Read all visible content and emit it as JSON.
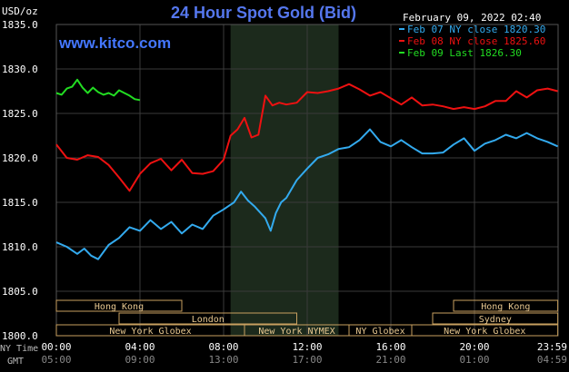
{
  "header": {
    "unit": "USD/oz",
    "title": "24 Hour Spot Gold (Bid)",
    "website": "www.kitco.com",
    "timestamp": "February 09, 2022 02:40"
  },
  "legend": [
    {
      "label": "Feb 07 NY close 1820.30",
      "color": "#33aaee"
    },
    {
      "label": "Feb 08 NY close 1825.60",
      "color": "#ee1111"
    },
    {
      "label": "Feb 09 Last 1826.30",
      "color": "#22dd22"
    }
  ],
  "markets": [
    {
      "name": "Hong Kong",
      "row": 0,
      "start": "00:00",
      "end": "06:00"
    },
    {
      "name": "Hong Kong",
      "row": 0,
      "start": "19:00",
      "end": "23:59"
    },
    {
      "name": "London",
      "row": 1,
      "start": "03:00",
      "end": "11:30"
    },
    {
      "name": "Sydney",
      "row": 1,
      "start": "18:00",
      "end": "23:59"
    },
    {
      "name": "New York Globex",
      "row": 2,
      "start": "00:00",
      "end": "09:00"
    },
    {
      "name": "New York NYMEX",
      "row": 2,
      "start": "09:00",
      "end": "14:00"
    },
    {
      "name": "NY Globex",
      "row": 2,
      "start": "14:00",
      "end": "17:00"
    },
    {
      "name": "New York Globex",
      "row": 2,
      "start": "17:00",
      "end": "23:59"
    }
  ],
  "axis_labels": {
    "ny_time": "NY Time",
    "gmt": "GMT"
  },
  "chart_data": {
    "type": "line",
    "title": "24 Hour Spot Gold (Bid)",
    "ylabel": "USD/oz",
    "ylim": [
      1800,
      1835
    ],
    "y_ticks": [
      "1800.0",
      "1805.0",
      "1810.0",
      "1815.0",
      "1820.0",
      "1825.0",
      "1830.0",
      "1835.0"
    ],
    "x_range_hours": [
      0,
      24
    ],
    "x_ticks_ny": [
      "00:00",
      "04:00",
      "08:00",
      "12:00",
      "16:00",
      "20:00",
      "23:59"
    ],
    "x_ticks_gmt": [
      "05:00",
      "09:00",
      "13:00",
      "17:00",
      "21:00",
      "01:00",
      "04:59"
    ],
    "highlight_band": {
      "start": "08:20",
      "end": "13:30"
    },
    "grid": true,
    "legend_position": "top-right",
    "series": [
      {
        "name": "Feb 07 NY close 1820.30",
        "color": "#33aaee",
        "x": [
          "00:00",
          "00:30",
          "01:00",
          "01:20",
          "01:40",
          "02:00",
          "02:30",
          "03:00",
          "03:30",
          "04:00",
          "04:30",
          "05:00",
          "05:30",
          "06:00",
          "06:30",
          "07:00",
          "07:30",
          "08:00",
          "08:30",
          "08:50",
          "09:10",
          "09:30",
          "10:00",
          "10:15",
          "10:30",
          "10:45",
          "11:00",
          "11:30",
          "12:00",
          "12:30",
          "13:00",
          "13:30",
          "14:00",
          "14:30",
          "15:00",
          "15:30",
          "16:00",
          "16:30",
          "17:00",
          "17:30",
          "18:00",
          "18:30",
          "19:00",
          "19:30",
          "20:00",
          "20:30",
          "21:00",
          "21:30",
          "22:00",
          "22:30",
          "23:00",
          "23:30",
          "23:59"
        ],
        "values": [
          1810.5,
          1810.0,
          1809.2,
          1809.8,
          1809.0,
          1808.6,
          1810.2,
          1811.0,
          1812.2,
          1811.8,
          1813.0,
          1812.0,
          1812.8,
          1811.5,
          1812.5,
          1812.0,
          1813.5,
          1814.2,
          1815.0,
          1816.2,
          1815.2,
          1814.5,
          1813.2,
          1811.8,
          1813.8,
          1815.0,
          1815.5,
          1817.5,
          1818.8,
          1820.0,
          1820.4,
          1821.0,
          1821.2,
          1822.0,
          1823.2,
          1821.8,
          1821.3,
          1822.0,
          1821.2,
          1820.5,
          1820.5,
          1820.6,
          1821.5,
          1822.2,
          1820.8,
          1821.6,
          1822.0,
          1822.6,
          1822.2,
          1822.8,
          1822.2,
          1821.8,
          1821.3
        ]
      },
      {
        "name": "Feb 08 NY close 1825.60",
        "color": "#ee1111",
        "x": [
          "00:00",
          "00:30",
          "01:00",
          "01:30",
          "02:00",
          "02:30",
          "03:00",
          "03:30",
          "04:00",
          "04:30",
          "05:00",
          "05:30",
          "06:00",
          "06:30",
          "07:00",
          "07:30",
          "08:00",
          "08:20",
          "08:40",
          "09:00",
          "09:20",
          "09:40",
          "10:00",
          "10:20",
          "10:40",
          "11:00",
          "11:30",
          "12:00",
          "12:30",
          "13:00",
          "13:30",
          "14:00",
          "14:30",
          "15:00",
          "15:30",
          "16:00",
          "16:30",
          "17:00",
          "17:30",
          "18:00",
          "18:30",
          "19:00",
          "19:30",
          "20:00",
          "20:30",
          "21:00",
          "21:30",
          "22:00",
          "22:30",
          "23:00",
          "23:30",
          "23:59"
        ],
        "values": [
          1821.5,
          1820.0,
          1819.8,
          1820.3,
          1820.1,
          1819.2,
          1817.8,
          1816.3,
          1818.2,
          1819.4,
          1819.9,
          1818.6,
          1819.8,
          1818.3,
          1818.2,
          1818.5,
          1819.8,
          1822.5,
          1823.2,
          1824.5,
          1822.3,
          1822.6,
          1827.0,
          1825.9,
          1826.2,
          1826.0,
          1826.2,
          1827.4,
          1827.3,
          1827.5,
          1827.8,
          1828.3,
          1827.7,
          1827.0,
          1827.4,
          1826.7,
          1826.0,
          1826.8,
          1825.9,
          1826.0,
          1825.8,
          1825.5,
          1825.7,
          1825.5,
          1825.8,
          1826.4,
          1826.4,
          1827.5,
          1826.8,
          1827.6,
          1827.8,
          1827.5
        ]
      },
      {
        "name": "Feb 09 Last 1826.30",
        "color": "#22dd22",
        "x": [
          "00:00",
          "00:15",
          "00:30",
          "00:45",
          "01:00",
          "01:15",
          "01:30",
          "01:45",
          "02:00",
          "02:15",
          "02:30",
          "02:45",
          "03:00",
          "03:15",
          "03:30",
          "03:45",
          "04:00"
        ],
        "values": [
          1827.3,
          1827.1,
          1827.8,
          1828.0,
          1828.8,
          1827.9,
          1827.3,
          1827.9,
          1827.4,
          1827.1,
          1827.3,
          1827.0,
          1827.6,
          1827.3,
          1827.0,
          1826.6,
          1826.5
        ]
      }
    ]
  }
}
